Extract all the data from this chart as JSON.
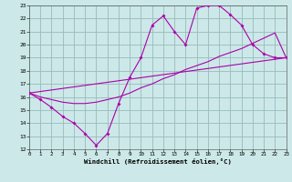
{
  "xlabel": "Windchill (Refroidissement éolien,°C)",
  "bg_color": "#cce8e8",
  "grid_color": "#99bbbb",
  "line_color": "#aa00aa",
  "xlim": [
    0,
    23
  ],
  "ylim": [
    12,
    23
  ],
  "xticks": [
    0,
    1,
    2,
    3,
    4,
    5,
    6,
    7,
    8,
    9,
    10,
    11,
    12,
    13,
    14,
    15,
    16,
    17,
    18,
    19,
    20,
    21,
    22,
    23
  ],
  "yticks": [
    12,
    13,
    14,
    15,
    16,
    17,
    18,
    19,
    20,
    21,
    22,
    23
  ],
  "lines": [
    {
      "x": [
        0,
        1,
        2,
        3,
        4,
        5,
        6,
        7,
        8,
        9,
        10,
        11,
        12,
        13,
        14,
        15,
        16,
        17,
        18,
        19,
        20,
        21,
        22,
        23
      ],
      "y": [
        16.3,
        15.8,
        15.2,
        14.5,
        14.0,
        13.2,
        12.3,
        13.2,
        15.5,
        17.5,
        19.0,
        21.5,
        22.2,
        21.0,
        20.0,
        22.8,
        23.0,
        23.0,
        22.3,
        21.5,
        20.0,
        19.3,
        19.0,
        19.0
      ],
      "markers": true
    },
    {
      "x": [
        0,
        1,
        2,
        3,
        4,
        5,
        6,
        7,
        8,
        9,
        10,
        11,
        12,
        13,
        14,
        15,
        16,
        17,
        18,
        19,
        20,
        21,
        22,
        23
      ],
      "y": [
        16.3,
        16.0,
        15.8,
        15.6,
        15.5,
        15.5,
        15.6,
        15.8,
        16.0,
        16.3,
        16.7,
        17.0,
        17.4,
        17.7,
        18.1,
        18.4,
        18.7,
        19.1,
        19.4,
        19.7,
        20.1,
        20.5,
        20.9,
        19.0
      ],
      "markers": false
    },
    {
      "x": [
        0,
        23
      ],
      "y": [
        16.3,
        19.0
      ],
      "markers": false
    }
  ]
}
